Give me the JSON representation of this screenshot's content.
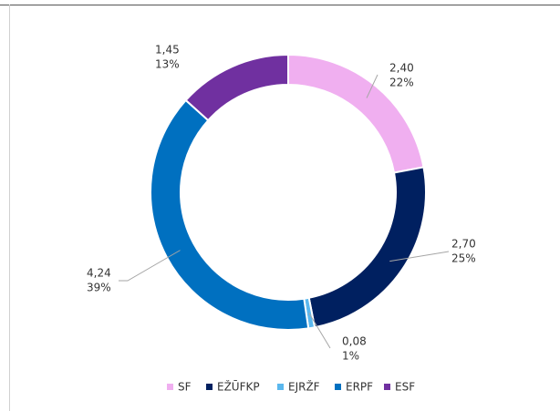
{
  "chart_data": {
    "type": "donut",
    "categories": [
      "SF",
      "EŽŪFKP",
      "EJRŽF",
      "ERPF",
      "ESF"
    ],
    "values": [
      2.4,
      2.7,
      0.08,
      4.24,
      1.45
    ],
    "value_labels": [
      "2,40",
      "2,70",
      "0,08",
      "4,24",
      "1,45"
    ],
    "percents": [
      22,
      25,
      1,
      39,
      13
    ],
    "percent_labels": [
      "22%",
      "25%",
      "1%",
      "39%",
      "13%"
    ],
    "colors": [
      "#f0aff0",
      "#002060",
      "#5bb8ee",
      "#0070c0",
      "#7030a0"
    ],
    "legend": "bottom"
  }
}
